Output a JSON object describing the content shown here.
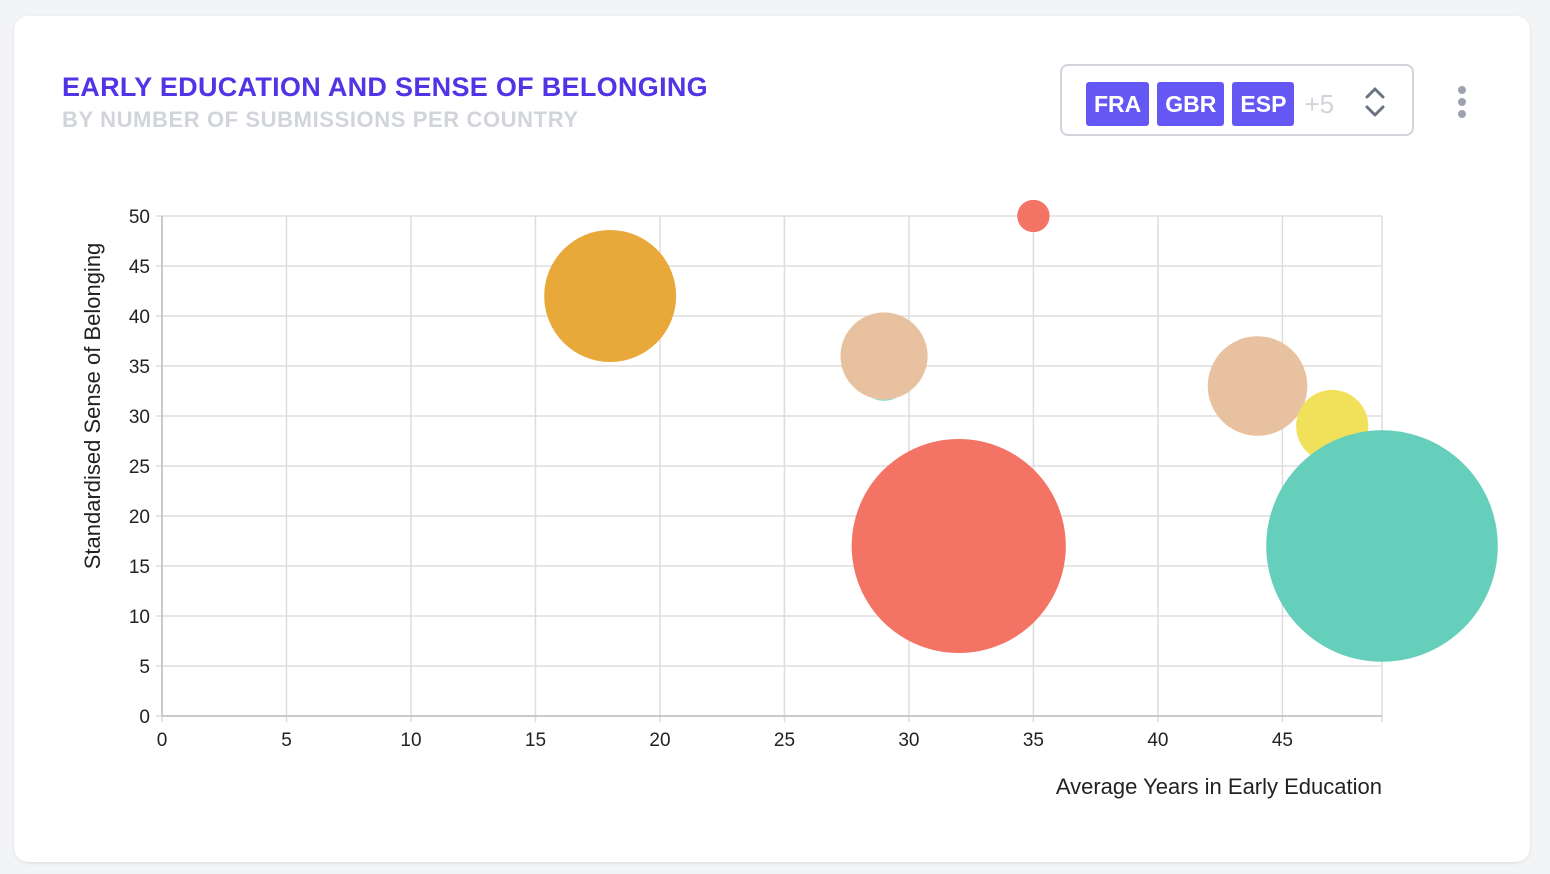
{
  "card": {
    "title": "EARLY EDUCATION AND SENSE OF BELONGING",
    "subtitle": "BY NUMBER OF SUBMISSIONS PER COUNTRY"
  },
  "filter": {
    "selected": [
      "FRA",
      "GBR",
      "ESP"
    ],
    "more_label": "+5",
    "tag_color": "#6557f4"
  },
  "icons": {
    "dropdown": "chevron-up-down-icon",
    "menu": "kebab-menu-icon"
  },
  "chart_data": {
    "type": "bubble",
    "title": "EARLY EDUCATION AND SENSE OF BELONGING",
    "subtitle": "BY NUMBER OF SUBMISSIONS PER COUNTRY",
    "xlabel": "Average Years in Early Education",
    "ylabel": "Standardised Sense of Belonging",
    "xlim": [
      0,
      49
    ],
    "ylim": [
      0,
      50
    ],
    "xticks": [
      0,
      5,
      10,
      15,
      20,
      25,
      30,
      35,
      40,
      45
    ],
    "yticks": [
      0,
      5,
      10,
      15,
      20,
      25,
      30,
      35,
      40,
      45,
      50
    ],
    "grid": true,
    "points": [
      {
        "x": 18,
        "y": 42,
        "size": 5.3,
        "color": "#e8a93a"
      },
      {
        "x": 35,
        "y": 50,
        "size": 1.3,
        "color": "#f37464"
      },
      {
        "x": 29,
        "y": 34,
        "size": 2.0,
        "color": "#8ee3d2"
      },
      {
        "x": 29,
        "y": 36,
        "size": 3.5,
        "color": "#e8c1a0"
      },
      {
        "x": 44,
        "y": 33,
        "size": 4.0,
        "color": "#e8c1a0"
      },
      {
        "x": 47,
        "y": 29,
        "size": 2.9,
        "color": "#f0e05a"
      },
      {
        "x": 32,
        "y": 17,
        "size": 8.6,
        "color": "#f37464"
      },
      {
        "x": 49,
        "y": 17,
        "size": 9.3,
        "color": "#66cfbb"
      }
    ]
  }
}
